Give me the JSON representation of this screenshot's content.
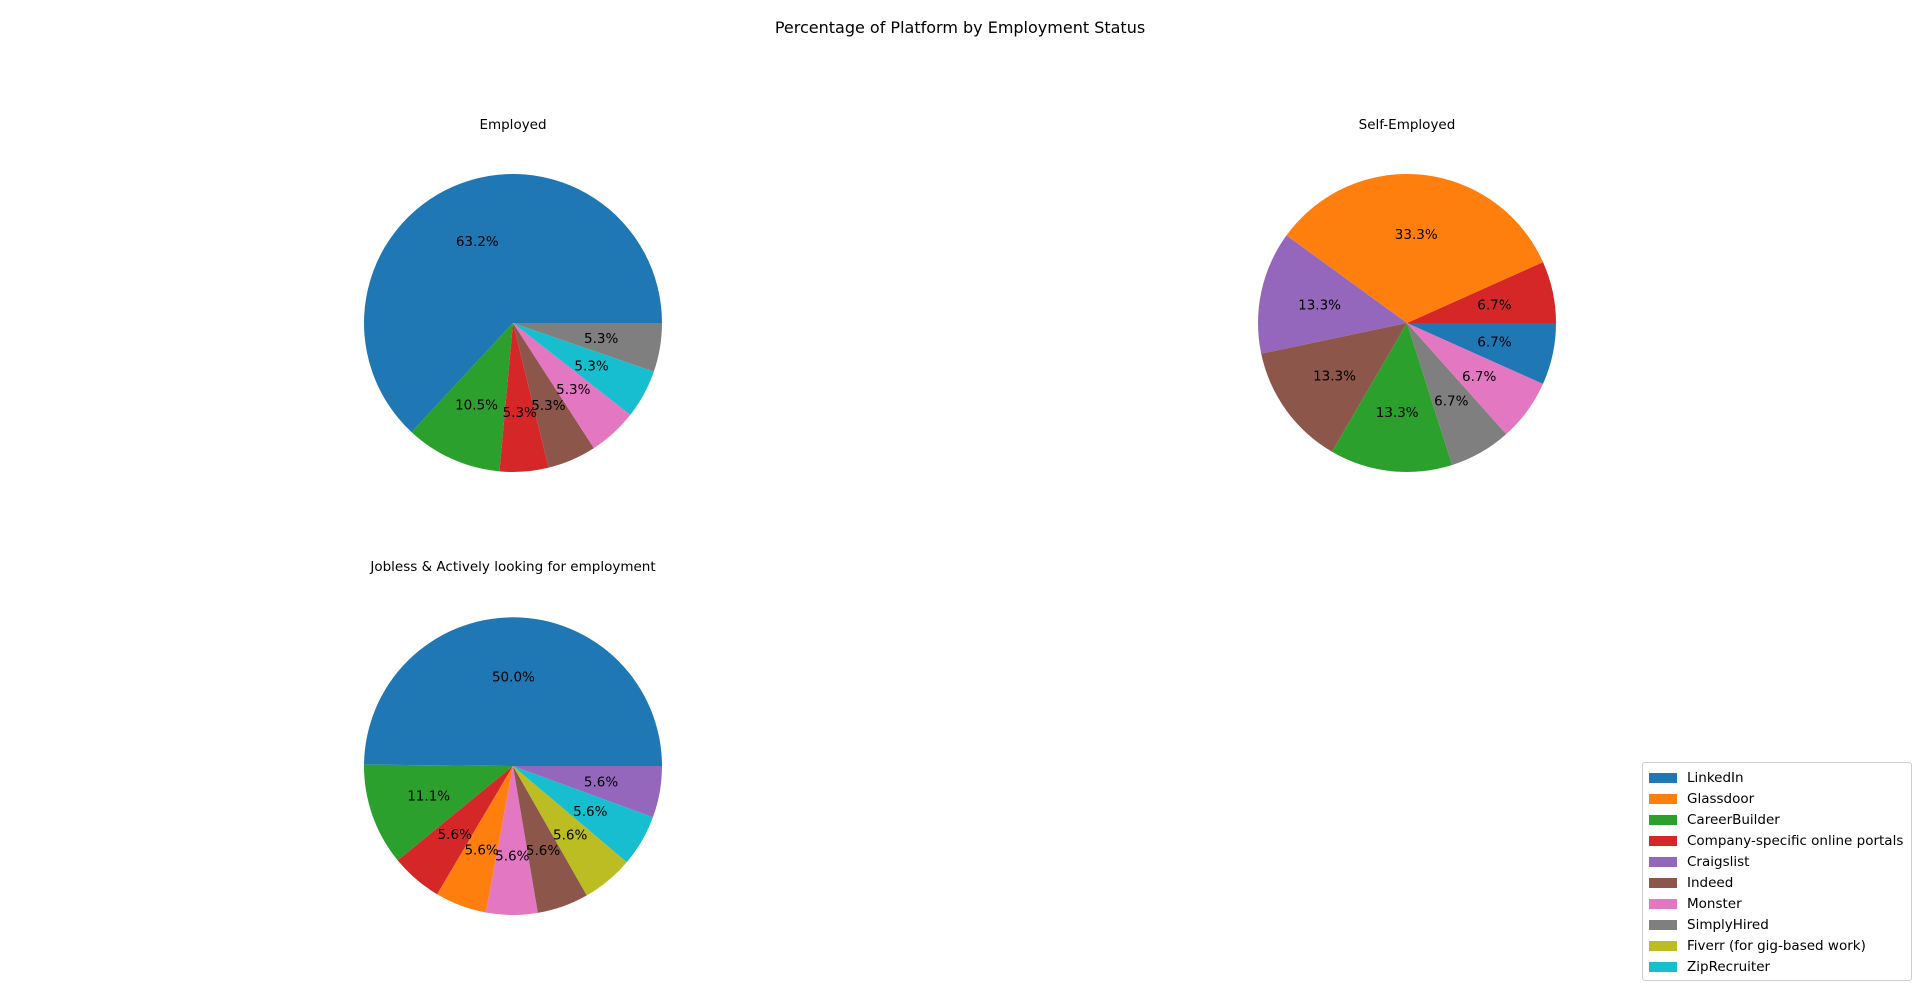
{
  "figure_title": "Percentage of Platform by Employment Status",
  "colors": {
    "LinkedIn": "#1f77b4",
    "Glassdoor": "#ff7f0e",
    "CareerBuilder": "#2ca02c",
    "Company-specific online portals": "#d62728",
    "Craigslist": "#9467bd",
    "Indeed": "#8c564b",
    "Monster": "#e377c2",
    "SimplyHired": "#7f7f7f",
    "Fiverr (for gig-based work)": "#bcbd22",
    "ZipRecruiter": "#17becf"
  },
  "legend": {
    "placement": "bottom-right",
    "entries": [
      "LinkedIn",
      "Glassdoor",
      "CareerBuilder",
      "Company-specific online portals",
      "Craigslist",
      "Indeed",
      "Monster",
      "SimplyHired",
      "Fiverr (for gig-based work)",
      "ZipRecruiter"
    ]
  },
  "chart_data": [
    {
      "type": "pie",
      "title": "Employed",
      "labels": [
        "LinkedIn",
        "CareerBuilder",
        "Company-specific online portals",
        "Indeed",
        "Monster",
        "ZipRecruiter",
        "SimplyHired"
      ],
      "values": [
        63.2,
        10.5,
        5.3,
        5.3,
        5.3,
        5.3,
        5.3
      ],
      "value_labels": [
        "63.2%",
        "10.5%",
        "5.3%",
        "5.3%",
        "5.3%",
        "5.3%",
        "5.3%"
      ],
      "start_angle_deg": 0,
      "direction": "counterclockwise"
    },
    {
      "type": "pie",
      "title": "Self-Employed",
      "labels": [
        "Company-specific online portals",
        "Glassdoor",
        "Craigslist",
        "Indeed",
        "CareerBuilder",
        "SimplyHired",
        "Monster",
        "LinkedIn"
      ],
      "values": [
        6.7,
        33.3,
        13.3,
        13.3,
        13.3,
        6.7,
        6.7,
        6.7
      ],
      "value_labels": [
        "6.7%",
        "33.3%",
        "13.3%",
        "13.3%",
        "13.3%",
        "6.7%",
        "6.7%",
        "6.7%"
      ],
      "start_angle_deg": 0,
      "direction": "counterclockwise"
    },
    {
      "type": "pie",
      "title": "Jobless & Actively looking for employment",
      "labels": [
        "LinkedIn",
        "CareerBuilder",
        "Company-specific online portals",
        "Glassdoor",
        "Monster",
        "Indeed",
        "Fiverr (for gig-based work)",
        "ZipRecruiter",
        "Craigslist"
      ],
      "values": [
        50.0,
        11.1,
        5.6,
        5.6,
        5.6,
        5.6,
        5.6,
        5.6,
        5.6
      ],
      "value_labels": [
        "50.0%",
        "11.1%",
        "5.6%",
        "5.6%",
        "5.6%",
        "5.6%",
        "5.6%",
        "5.6%",
        "5.6%"
      ],
      "start_angle_deg": 0,
      "direction": "counterclockwise"
    }
  ]
}
